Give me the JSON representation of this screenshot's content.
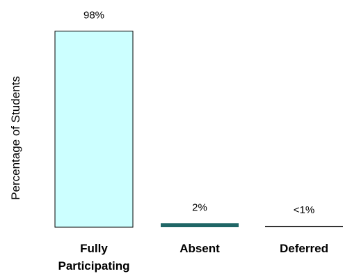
{
  "chart_data": {
    "type": "bar",
    "categories": [
      [
        "Fully",
        "Participating"
      ],
      [
        "Absent"
      ],
      [
        "Deferred"
      ]
    ],
    "values": [
      98,
      2,
      0.5
    ],
    "data_labels": [
      "98%",
      "2%",
      "<1%"
    ],
    "ylabel": "Percentage of Students",
    "ylim": [
      0,
      100
    ],
    "grid": false,
    "colors": [
      "#ccffff",
      "#1f6666",
      "#333333"
    ]
  }
}
